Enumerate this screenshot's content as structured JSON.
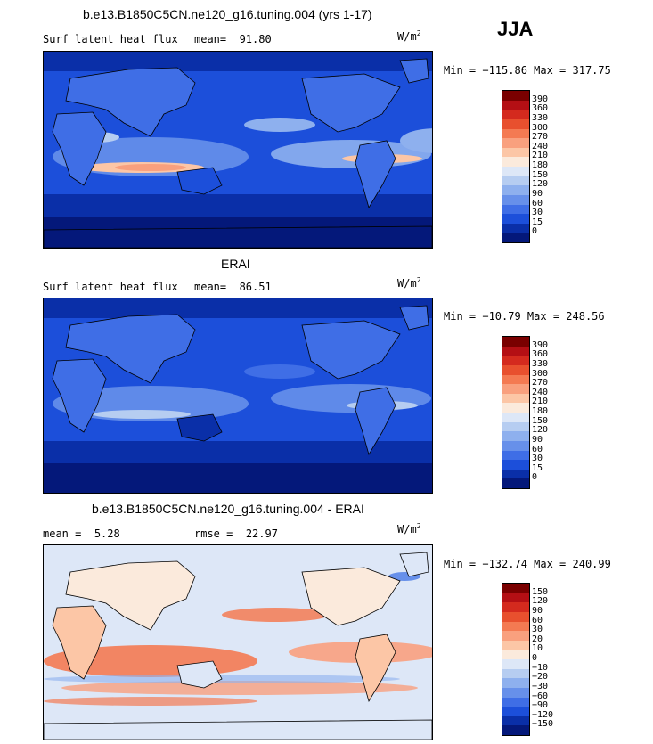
{
  "season": "JJA",
  "panels": [
    {
      "title": "b.e13.B1850C5CN.ne120_g16.tuning.004 (yrs 1-17)",
      "field": "Surf latent heat flux",
      "mean_label": "mean=",
      "mean_value": "91.80",
      "unit_base": "W/m",
      "unit_exp": "2",
      "minmax": "Min = −115.86 Max = 317.75",
      "palette": "abs",
      "colorbar_labels": [
        "390",
        "360",
        "330",
        "300",
        "270",
        "240",
        "210",
        "180",
        "150",
        "120",
        "90",
        "60",
        "30",
        "15",
        "0"
      ]
    },
    {
      "title": "ERAI",
      "field": "Surf latent heat flux",
      "mean_label": "mean=",
      "mean_value": "86.51",
      "unit_base": "W/m",
      "unit_exp": "2",
      "minmax": "Min = −10.79 Max = 248.56",
      "palette": "abs",
      "colorbar_labels": [
        "390",
        "360",
        "330",
        "300",
        "270",
        "240",
        "210",
        "180",
        "150",
        "120",
        "90",
        "60",
        "30",
        "15",
        "0"
      ]
    },
    {
      "title": "b.e13.B1850C5CN.ne120_g16.tuning.004 - ERAI",
      "mean_label": "mean =",
      "mean_value": "5.28",
      "rmse_label": "rmse =",
      "rmse_value": "22.97",
      "unit_base": "W/m",
      "unit_exp": "2",
      "minmax": "Min = −132.74 Max = 240.99",
      "palette": "diff",
      "colorbar_labels": [
        "150",
        "120",
        "90",
        "60",
        "30",
        "20",
        "10",
        "0",
        "−10",
        "−20",
        "−30",
        "−60",
        "−90",
        "−120",
        "−150"
      ]
    }
  ],
  "colors": {
    "abs": [
      "#7a0000",
      "#b40f14",
      "#d42a1e",
      "#e8502e",
      "#f47a52",
      "#f9a07e",
      "#fcc6a6",
      "#fbeadc",
      "#dde7f7",
      "#b6cdf1",
      "#8eb0ee",
      "#6790ea",
      "#3f6ee6",
      "#1c4fda",
      "#0a2fa8",
      "#04187a"
    ],
    "diff": [
      "#7a0000",
      "#b40f14",
      "#d42a1e",
      "#e8502e",
      "#f47a52",
      "#f9a07e",
      "#fcc6a6",
      "#fbeadc",
      "#dde7f7",
      "#b6cdf1",
      "#8eb0ee",
      "#6790ea",
      "#3f6ee6",
      "#1c4fda",
      "#0a2fa8",
      "#04187a"
    ]
  }
}
